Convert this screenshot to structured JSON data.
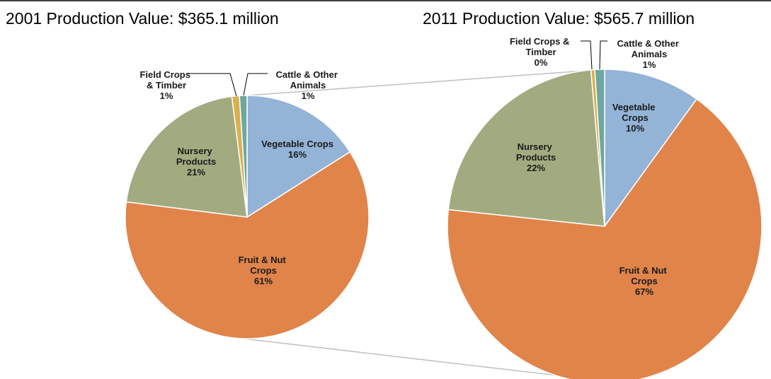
{
  "chart_data": [
    {
      "type": "pie",
      "title": "2001 Production Value: $365.1 million",
      "categories": [
        "Vegetable Crops",
        "Fruit & Nut Crops",
        "Nursery Products",
        "Field Crops & Timber",
        "Cattle & Other Animals"
      ],
      "values": [
        16,
        61,
        21,
        1,
        1
      ],
      "value_labels": [
        "16%",
        "61%",
        "21%",
        "1%",
        "1%"
      ],
      "colors": [
        "#93b3d7",
        "#e0844a",
        "#a2ab80",
        "#d9b04f",
        "#6ea6a0"
      ]
    },
    {
      "type": "pie",
      "title": "2011 Production Value: $565.7 million",
      "categories": [
        "Vegetable Crops",
        "Fruit & Nut Crops",
        "Nursery Products",
        "Field Crops & Timber",
        "Cattle & Other Animals"
      ],
      "values": [
        10,
        67,
        22,
        0.4,
        1
      ],
      "value_labels": [
        "10%",
        "67%",
        "22%",
        "0%",
        "1%"
      ],
      "colors": [
        "#93b3d7",
        "#e0844a",
        "#a2ab80",
        "#d9b04f",
        "#6ea6a0"
      ]
    }
  ]
}
